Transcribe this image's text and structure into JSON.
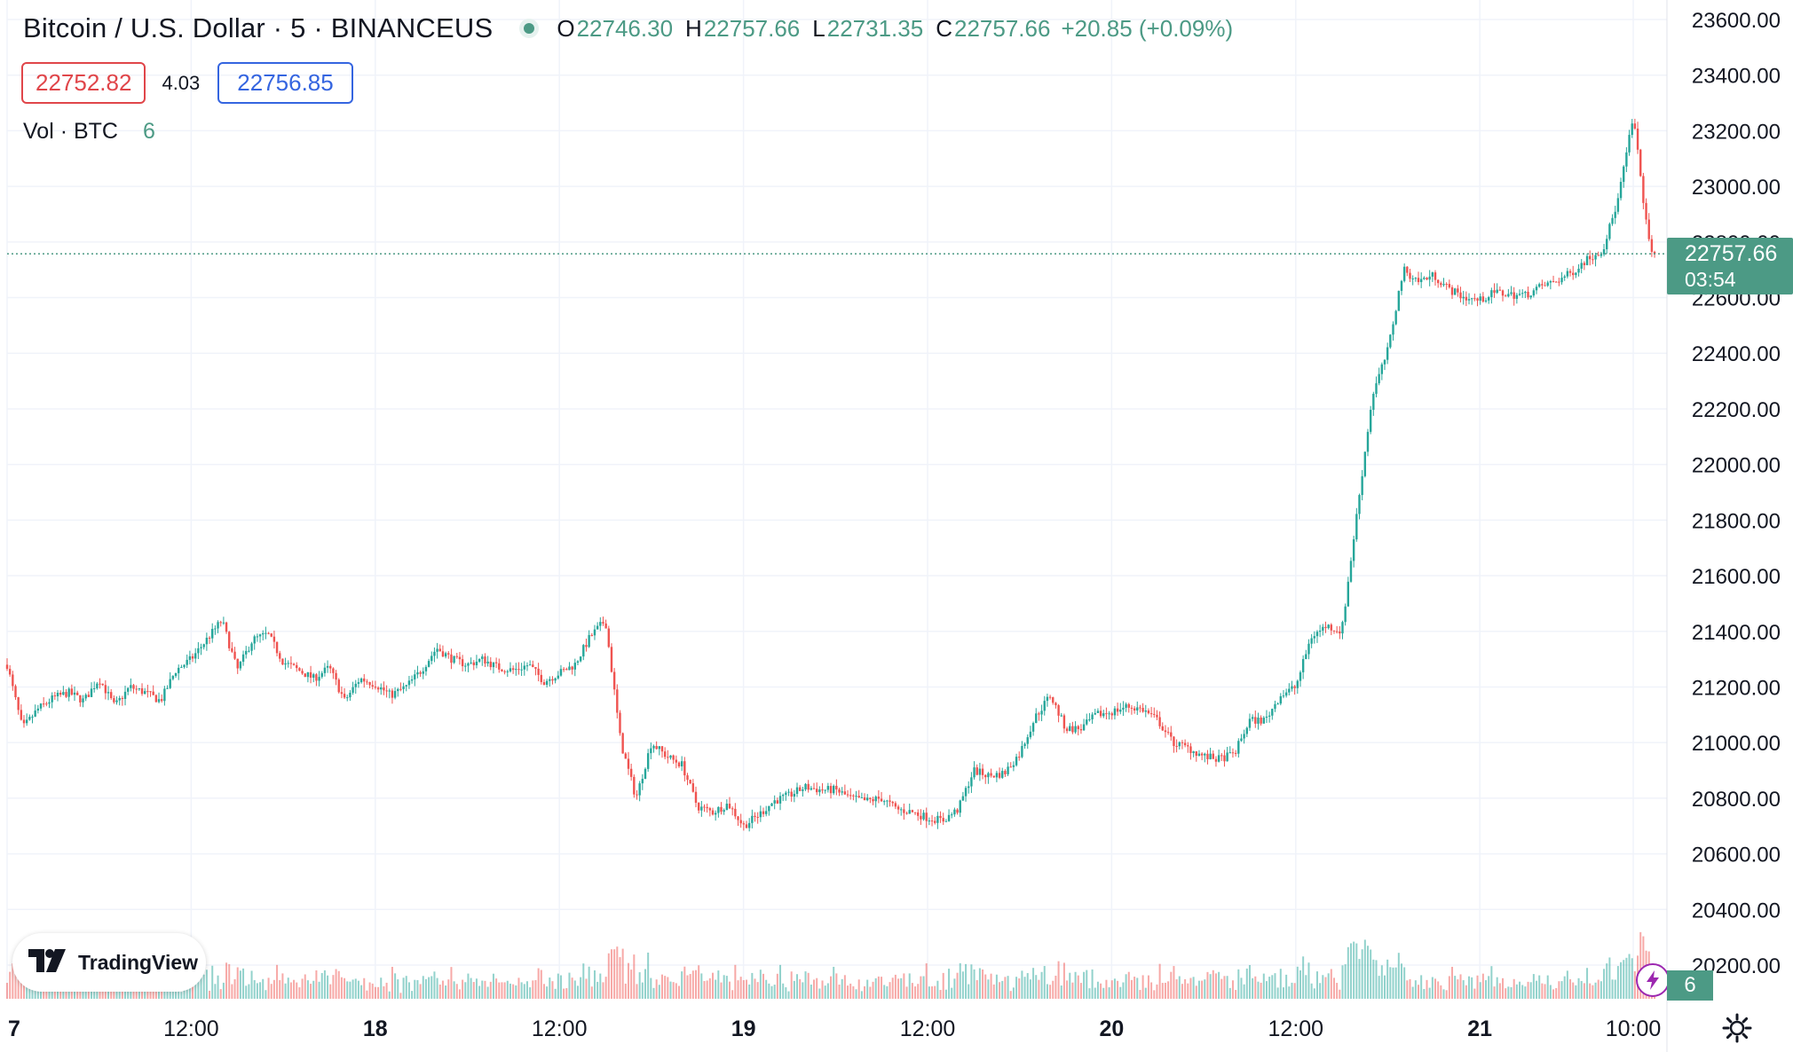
{
  "header": {
    "symbol": "Bitcoin / U.S. Dollar · 5 · BINANCEUS",
    "ohlc": {
      "open_label": "O",
      "open": "22746.30",
      "high_label": "H",
      "high": "22757.66",
      "low_label": "L",
      "low": "22731.35",
      "close_label": "C",
      "close": "22757.66",
      "change": "+20.85 (+0.09%)"
    },
    "bid": "22752.82",
    "spread": "4.03",
    "ask": "22756.85",
    "volume_label": "Vol · BTC",
    "volume_value": "6"
  },
  "watermark": {
    "name": "TradingView",
    "icon": "tradingview-logo-icon"
  },
  "last_price": {
    "price": "22757.66",
    "countdown": "03:54"
  },
  "volume_tag": "6",
  "icons": {
    "alert": "lightning-icon",
    "settings": "gear-icon"
  },
  "colors": {
    "up": "#26a69a",
    "down": "#ef5350",
    "accent": "#4c9a85",
    "bid": "#e0464a",
    "ask": "#3565e0"
  },
  "chart_data": {
    "type": "candlestick",
    "y_axis": {
      "min": 20100,
      "max": 23650,
      "ticks": [
        "20200.00",
        "20400.00",
        "20600.00",
        "20800.00",
        "21000.00",
        "21200.00",
        "21400.00",
        "21600.00",
        "21800.00",
        "22000.00",
        "22200.00",
        "22400.00",
        "22600.00",
        "22800.00",
        "23000.00",
        "23200.00",
        "23400.00",
        "23600.00"
      ]
    },
    "x_axis": {
      "ticks": [
        {
          "label": "7",
          "t": 0
        },
        {
          "label": "12:00",
          "t": 12
        },
        {
          "label": "18",
          "t": 24
        },
        {
          "label": "12:00",
          "t": 36
        },
        {
          "label": "19",
          "t": 48
        },
        {
          "label": "12:00",
          "t": 60
        },
        {
          "label": "20",
          "t": 72
        },
        {
          "label": "12:00",
          "t": 84
        },
        {
          "label": "21",
          "t": 96
        },
        {
          "label": "10:00",
          "t": 106
        }
      ]
    },
    "last_price": 22757.66,
    "price_path": [
      [
        0,
        21280
      ],
      [
        1,
        21050
      ],
      [
        2,
        21120
      ],
      [
        3,
        21160
      ],
      [
        4,
        21180
      ],
      [
        5,
        21150
      ],
      [
        6,
        21230
      ],
      [
        7,
        21130
      ],
      [
        8,
        21200
      ],
      [
        9,
        21180
      ],
      [
        10,
        21150
      ],
      [
        11,
        21260
      ],
      [
        12,
        21300
      ],
      [
        13,
        21370
      ],
      [
        14,
        21440
      ],
      [
        15,
        21260
      ],
      [
        16,
        21370
      ],
      [
        17,
        21390
      ],
      [
        18,
        21290
      ],
      [
        19,
        21260
      ],
      [
        20,
        21230
      ],
      [
        21,
        21270
      ],
      [
        22,
        21150
      ],
      [
        23,
        21230
      ],
      [
        24,
        21210
      ],
      [
        25,
        21170
      ],
      [
        26,
        21200
      ],
      [
        27,
        21260
      ],
      [
        28,
        21340
      ],
      [
        29,
        21300
      ],
      [
        30,
        21280
      ],
      [
        31,
        21300
      ],
      [
        32,
        21270
      ],
      [
        33,
        21260
      ],
      [
        34,
        21280
      ],
      [
        35,
        21220
      ],
      [
        36,
        21250
      ],
      [
        37,
        21280
      ],
      [
        38,
        21380
      ],
      [
        39,
        21440
      ],
      [
        40,
        21000
      ],
      [
        41,
        20800
      ],
      [
        42,
        21000
      ],
      [
        43,
        20950
      ],
      [
        44,
        20920
      ],
      [
        45,
        20770
      ],
      [
        46,
        20750
      ],
      [
        47,
        20780
      ],
      [
        48,
        20700
      ],
      [
        49,
        20740
      ],
      [
        50,
        20790
      ],
      [
        51,
        20810
      ],
      [
        52,
        20840
      ],
      [
        53,
        20830
      ],
      [
        54,
        20830
      ],
      [
        55,
        20800
      ],
      [
        56,
        20790
      ],
      [
        57,
        20800
      ],
      [
        58,
        20760
      ],
      [
        59,
        20750
      ],
      [
        60,
        20730
      ],
      [
        61,
        20720
      ],
      [
        62,
        20760
      ],
      [
        63,
        20900
      ],
      [
        64,
        20880
      ],
      [
        65,
        20890
      ],
      [
        66,
        20960
      ],
      [
        67,
        21090
      ],
      [
        68,
        21170
      ],
      [
        69,
        21050
      ],
      [
        70,
        21050
      ],
      [
        71,
        21100
      ],
      [
        72,
        21110
      ],
      [
        73,
        21130
      ],
      [
        74,
        21120
      ],
      [
        75,
        21080
      ],
      [
        76,
        21000
      ],
      [
        77,
        20980
      ],
      [
        78,
        20950
      ],
      [
        79,
        20940
      ],
      [
        80,
        20960
      ],
      [
        81,
        21080
      ],
      [
        82,
        21080
      ],
      [
        83,
        21170
      ],
      [
        84,
        21200
      ],
      [
        85,
        21380
      ],
      [
        86,
        21420
      ],
      [
        87,
        21400
      ],
      [
        88,
        21830
      ],
      [
        89,
        22250
      ],
      [
        90,
        22410
      ],
      [
        91,
        22700
      ],
      [
        92,
        22660
      ],
      [
        93,
        22680
      ],
      [
        94,
        22630
      ],
      [
        95,
        22600
      ],
      [
        96,
        22590
      ],
      [
        97,
        22620
      ],
      [
        98,
        22610
      ],
      [
        99,
        22610
      ],
      [
        100,
        22640
      ],
      [
        101,
        22660
      ],
      [
        102,
        22690
      ],
      [
        103,
        22740
      ],
      [
        104,
        22770
      ],
      [
        105,
        22950
      ],
      [
        106,
        23250
      ],
      [
        107,
        22800
      ],
      [
        107.4,
        22757.66
      ]
    ]
  }
}
